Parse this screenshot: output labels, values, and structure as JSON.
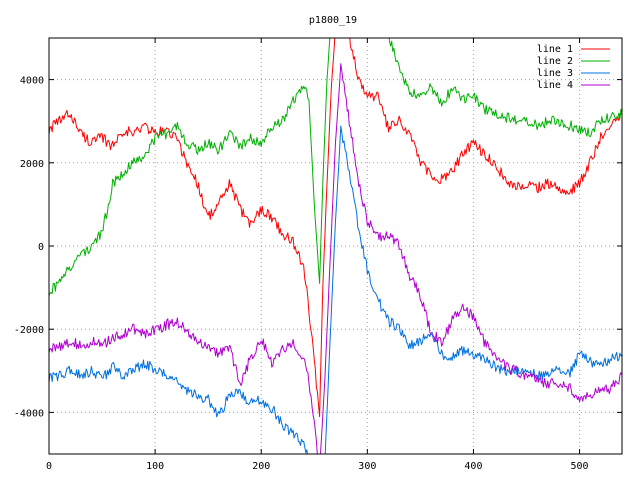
{
  "chart_data": {
    "type": "line",
    "title": "p1800_19",
    "xlabel": "",
    "ylabel": "",
    "xlim": [
      0,
      540
    ],
    "ylim": [
      -5000,
      5000
    ],
    "x_ticks": [
      0,
      100,
      200,
      300,
      400,
      500
    ],
    "y_ticks": [
      -4000,
      -2000,
      0,
      2000,
      4000
    ],
    "grid": true,
    "legend_position": "top-right",
    "series": [
      {
        "name": "line 1",
        "color": "#ff0000",
        "x": [
          0,
          10,
          20,
          30,
          40,
          50,
          60,
          70,
          80,
          90,
          100,
          110,
          120,
          130,
          140,
          150,
          160,
          170,
          180,
          190,
          200,
          210,
          220,
          230,
          240,
          245,
          250,
          255,
          258,
          262,
          266,
          270,
          275,
          280,
          290,
          300,
          310,
          320,
          330,
          340,
          350,
          360,
          370,
          380,
          390,
          400,
          410,
          420,
          430,
          440,
          450,
          460,
          470,
          480,
          490,
          500,
          510,
          520,
          530,
          540
        ],
        "values": [
          2800,
          3000,
          3200,
          2700,
          2500,
          2600,
          2400,
          2800,
          2700,
          2900,
          2700,
          2800,
          2600,
          2000,
          1500,
          700,
          1000,
          1500,
          900,
          500,
          900,
          700,
          300,
          100,
          -500,
          -1500,
          -2800,
          -4100,
          -1000,
          1500,
          3800,
          5200,
          5600,
          5400,
          4200,
          3600,
          3600,
          2800,
          3000,
          2700,
          2000,
          1700,
          1600,
          1800,
          2200,
          2500,
          2200,
          2000,
          1600,
          1400,
          1500,
          1400,
          1500,
          1400,
          1300,
          1500,
          2000,
          2600,
          3000,
          3200
        ]
      },
      {
        "name": "line 2",
        "color": "#00b000",
        "x": [
          0,
          10,
          20,
          30,
          40,
          50,
          60,
          70,
          80,
          90,
          100,
          110,
          120,
          130,
          140,
          150,
          160,
          170,
          180,
          190,
          200,
          210,
          220,
          230,
          240,
          245,
          250,
          255,
          258,
          262,
          266,
          270,
          275,
          280,
          290,
          300,
          310,
          320,
          330,
          340,
          350,
          360,
          370,
          380,
          390,
          400,
          410,
          420,
          430,
          440,
          450,
          460,
          470,
          480,
          490,
          500,
          510,
          520,
          530,
          540
        ],
        "values": [
          -1100,
          -900,
          -500,
          -200,
          0,
          300,
          1500,
          1800,
          2000,
          2200,
          2600,
          2700,
          2900,
          2500,
          2300,
          2500,
          2300,
          2700,
          2400,
          2600,
          2500,
          2900,
          3000,
          3500,
          3900,
          3500,
          1000,
          -900,
          1500,
          4000,
          5500,
          5600,
          5600,
          5800,
          6000,
          5600,
          5300,
          5100,
          4200,
          3700,
          3600,
          3800,
          3400,
          3800,
          3500,
          3600,
          3300,
          3200,
          3100,
          3000,
          3000,
          2900,
          3000,
          3000,
          2900,
          2800,
          2700,
          3000,
          3100,
          3200
        ]
      },
      {
        "name": "line 3",
        "color": "#0070e0",
        "x": [
          0,
          10,
          20,
          30,
          40,
          50,
          60,
          70,
          80,
          90,
          100,
          110,
          120,
          130,
          140,
          150,
          160,
          170,
          180,
          190,
          200,
          210,
          220,
          230,
          240,
          245,
          250,
          255,
          260,
          265,
          270,
          275,
          280,
          290,
          300,
          310,
          320,
          330,
          340,
          350,
          360,
          370,
          380,
          390,
          400,
          410,
          420,
          430,
          440,
          450,
          460,
          470,
          480,
          490,
          500,
          510,
          520,
          530,
          540
        ],
        "values": [
          -3200,
          -3100,
          -3000,
          -3100,
          -3000,
          -3200,
          -2900,
          -3100,
          -3000,
          -2800,
          -3000,
          -3100,
          -3200,
          -3500,
          -3600,
          -3700,
          -4100,
          -3600,
          -3500,
          -3800,
          -3700,
          -3900,
          -4300,
          -4500,
          -4800,
          -5000,
          -5600,
          -6000,
          -5200,
          -2200,
          600,
          2800,
          2200,
          700,
          -600,
          -1300,
          -1800,
          -2000,
          -2400,
          -2300,
          -2100,
          -2600,
          -2700,
          -2500,
          -2600,
          -2700,
          -2900,
          -3000,
          -3000,
          -3000,
          -3100,
          -3100,
          -3000,
          -3100,
          -2600,
          -2800,
          -2900,
          -2700,
          -2600
        ]
      },
      {
        "name": "line 4",
        "color": "#b000d0",
        "x": [
          0,
          10,
          20,
          30,
          40,
          50,
          60,
          70,
          80,
          90,
          100,
          110,
          120,
          130,
          140,
          150,
          160,
          170,
          180,
          190,
          200,
          210,
          220,
          230,
          240,
          245,
          250,
          255,
          260,
          265,
          270,
          275,
          280,
          290,
          300,
          310,
          320,
          330,
          340,
          350,
          360,
          370,
          380,
          390,
          400,
          410,
          420,
          430,
          440,
          450,
          460,
          470,
          480,
          490,
          500,
          510,
          520,
          530,
          540
        ],
        "values": [
          -2500,
          -2400,
          -2300,
          -2400,
          -2300,
          -2400,
          -2200,
          -2100,
          -2000,
          -2100,
          -2000,
          -1900,
          -1800,
          -2000,
          -2300,
          -2400,
          -2600,
          -2400,
          -3300,
          -2700,
          -2200,
          -2800,
          -2500,
          -2300,
          -2700,
          -3200,
          -4300,
          -5400,
          -3200,
          -300,
          2500,
          4300,
          3500,
          1800,
          600,
          200,
          300,
          0,
          -700,
          -1200,
          -2100,
          -2300,
          -1800,
          -1500,
          -1700,
          -2300,
          -2600,
          -2900,
          -3000,
          -3100,
          -3200,
          -3300,
          -3300,
          -3400,
          -3700,
          -3600,
          -3500,
          -3400,
          -3100
        ]
      }
    ]
  }
}
